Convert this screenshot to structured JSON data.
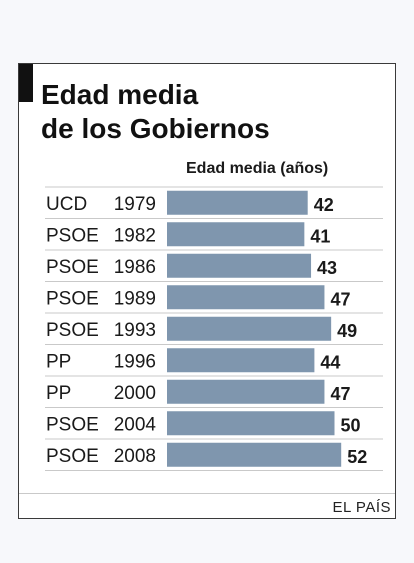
{
  "title_lines": [
    "Edad media",
    "de los Gobiernos"
  ],
  "chart_data": {
    "type": "bar",
    "orientation": "horizontal",
    "title": "Edad media de los Gobiernos",
    "series_label": "Edad media (años)",
    "categories": [
      {
        "party": "UCD",
        "year": "1979"
      },
      {
        "party": "PSOE",
        "year": "1982"
      },
      {
        "party": "PSOE",
        "year": "1986"
      },
      {
        "party": "PSOE",
        "year": "1989"
      },
      {
        "party": "PSOE",
        "year": "1993"
      },
      {
        "party": "PP",
        "year": "1996"
      },
      {
        "party": "PP",
        "year": "2000"
      },
      {
        "party": "PSOE",
        "year": "2004"
      },
      {
        "party": "PSOE",
        "year": "2008"
      }
    ],
    "values": [
      42,
      41,
      43,
      47,
      49,
      44,
      47,
      50,
      52
    ],
    "bar_color": "#7f96ae",
    "grid": false
  },
  "source": "EL PAÍS"
}
